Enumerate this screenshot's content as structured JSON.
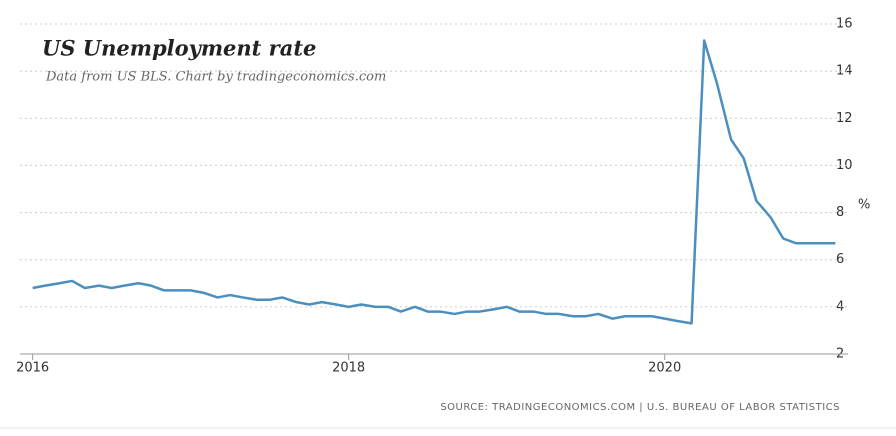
{
  "chart_data": {
    "type": "line",
    "title": "US Unemployment rate",
    "subtitle": "Data from US BLS. Chart by tradingeconomics.com",
    "source": "SOURCE: TRADINGECONOMICS.COM | U.S. BUREAU OF LABOR STATISTICS",
    "y_label": "%",
    "x": [
      2016,
      2016.08,
      2016.17,
      2016.25,
      2016.33,
      2016.42,
      2016.5,
      2016.58,
      2016.67,
      2016.75,
      2016.83,
      2016.92,
      2017,
      2017.08,
      2017.17,
      2017.25,
      2017.33,
      2017.42,
      2017.5,
      2017.58,
      2017.67,
      2017.75,
      2017.83,
      2017.92,
      2018,
      2018.08,
      2018.17,
      2018.25,
      2018.33,
      2018.42,
      2018.5,
      2018.58,
      2018.67,
      2018.75,
      2018.83,
      2018.92,
      2019,
      2019.08,
      2019.17,
      2019.25,
      2019.33,
      2019.42,
      2019.5,
      2019.58,
      2019.67,
      2019.75,
      2019.83,
      2019.92,
      2020,
      2020.08,
      2020.17,
      2020.25,
      2020.33,
      2020.42,
      2020.5,
      2020.58,
      2020.67,
      2020.75,
      2020.83,
      2020.92,
      2021,
      2021.08
    ],
    "series": [
      {
        "name": "Unemployment rate",
        "color": "#4a8fc0",
        "values": [
          4.8,
          4.9,
          5.0,
          5.1,
          4.8,
          4.9,
          4.8,
          4.9,
          5.0,
          4.9,
          4.7,
          4.7,
          4.7,
          4.6,
          4.4,
          4.5,
          4.4,
          4.3,
          4.3,
          4.4,
          4.2,
          4.1,
          4.2,
          4.1,
          4.0,
          4.1,
          4.0,
          4.0,
          3.8,
          4.0,
          3.8,
          3.8,
          3.7,
          3.8,
          3.8,
          3.9,
          4.0,
          3.8,
          3.8,
          3.7,
          3.7,
          3.6,
          3.6,
          3.7,
          3.5,
          3.6,
          3.6,
          3.6,
          3.5,
          3.4,
          3.3,
          15.3,
          13.5,
          11.1,
          10.3,
          8.5,
          7.8,
          6.9,
          6.7,
          6.7,
          6.7,
          6.7
        ]
      }
    ],
    "xlim": [
      2015.92,
      2021.16
    ],
    "xticks": [
      2016,
      2018,
      2020
    ],
    "ylim": [
      2,
      16
    ],
    "yticks": [
      2,
      4,
      6,
      8,
      10,
      12,
      14,
      16
    ],
    "grid": true
  }
}
